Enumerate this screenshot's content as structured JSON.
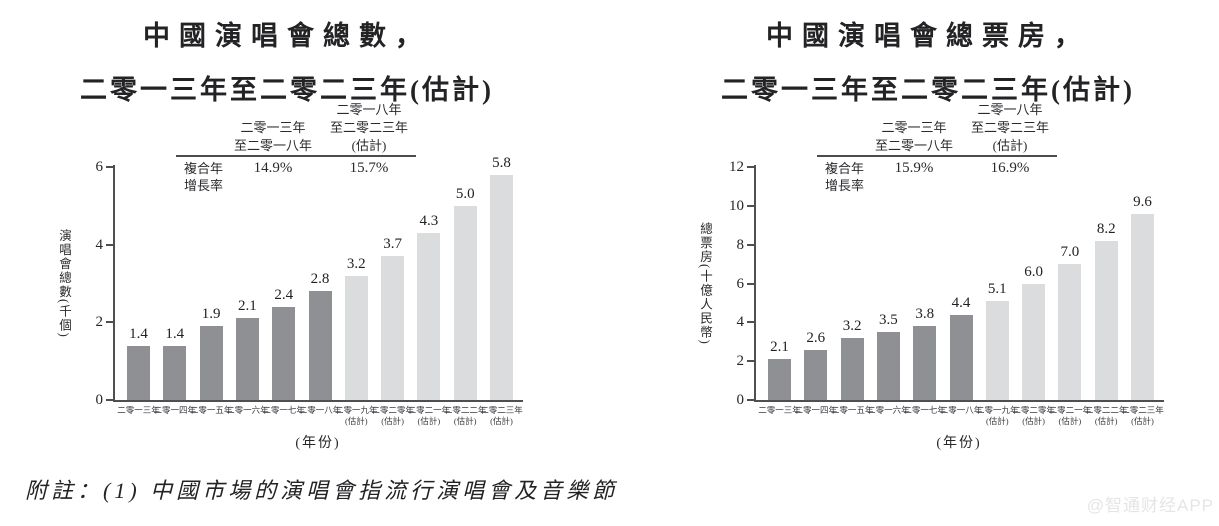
{
  "footnote": "附註：(1) 中國市場的演唱會指流行演唱會及音樂節",
  "watermark": "@智通财经APP",
  "colors": {
    "background": "#ffffff",
    "bar_actual": "#8e9093",
    "bar_estimate": "#dbdcdd",
    "axis": "#4f4f53",
    "text": "#26262a",
    "watermark": "#e5e5e5"
  },
  "chart_data": [
    {
      "type": "bar",
      "title_line1": "中國演唱會總數，",
      "title_line2": "二零一三年至二零二三年(估計)",
      "ylabel": "演唱會總數(千個)",
      "xlabel": "(年份)",
      "ylim": [
        0,
        6
      ],
      "yticks": [
        0,
        2,
        4,
        6
      ],
      "grid": false,
      "legend_position": "none",
      "categories": [
        "二零一三年",
        "二零一四年",
        "二零一五年",
        "二零一六年",
        "二零一七年",
        "二零一八年",
        "二零一九年",
        "二零二零年",
        "二零二一年",
        "二零二二年",
        "二零二三年"
      ],
      "estimate_note": "(估計)",
      "estimate_from_index": 6,
      "values": [
        1.4,
        1.4,
        1.9,
        2.1,
        2.4,
        2.8,
        3.2,
        3.7,
        4.3,
        5.0,
        5.8
      ],
      "cagr": {
        "row_label_lines": [
          "複合年",
          "增長率"
        ],
        "columns": [
          {
            "header_lines": [
              "二零一三年",
              "至二零一八年",
              ""
            ],
            "value": "14.9%"
          },
          {
            "header_lines": [
              "二零一八年",
              "至二零二三年",
              "(估計)"
            ],
            "value": "15.7%"
          }
        ]
      }
    },
    {
      "type": "bar",
      "title_line1": "中國演唱會總票房，",
      "title_line2": "二零一三年至二零二三年(估計)",
      "ylabel": "總票房(十億人民幣)",
      "xlabel": "(年份)",
      "ylim": [
        0,
        12
      ],
      "yticks": [
        0,
        2,
        4,
        6,
        8,
        10,
        12
      ],
      "grid": false,
      "legend_position": "none",
      "categories": [
        "二零一三年",
        "二零一四年",
        "二零一五年",
        "二零一六年",
        "二零一七年",
        "二零一八年",
        "二零一九年",
        "二零二零年",
        "二零二一年",
        "二零二二年",
        "二零二三年"
      ],
      "estimate_note": "(估計)",
      "estimate_from_index": 6,
      "values": [
        2.1,
        2.6,
        3.2,
        3.5,
        3.8,
        4.4,
        5.1,
        6.0,
        7.0,
        8.2,
        9.6
      ],
      "cagr": {
        "row_label_lines": [
          "複合年",
          "增長率"
        ],
        "columns": [
          {
            "header_lines": [
              "二零一三年",
              "至二零一八年",
              ""
            ],
            "value": "15.9%"
          },
          {
            "header_lines": [
              "二零一八年",
              "至二零二三年",
              "(估計)"
            ],
            "value": "16.9%"
          }
        ]
      }
    }
  ]
}
